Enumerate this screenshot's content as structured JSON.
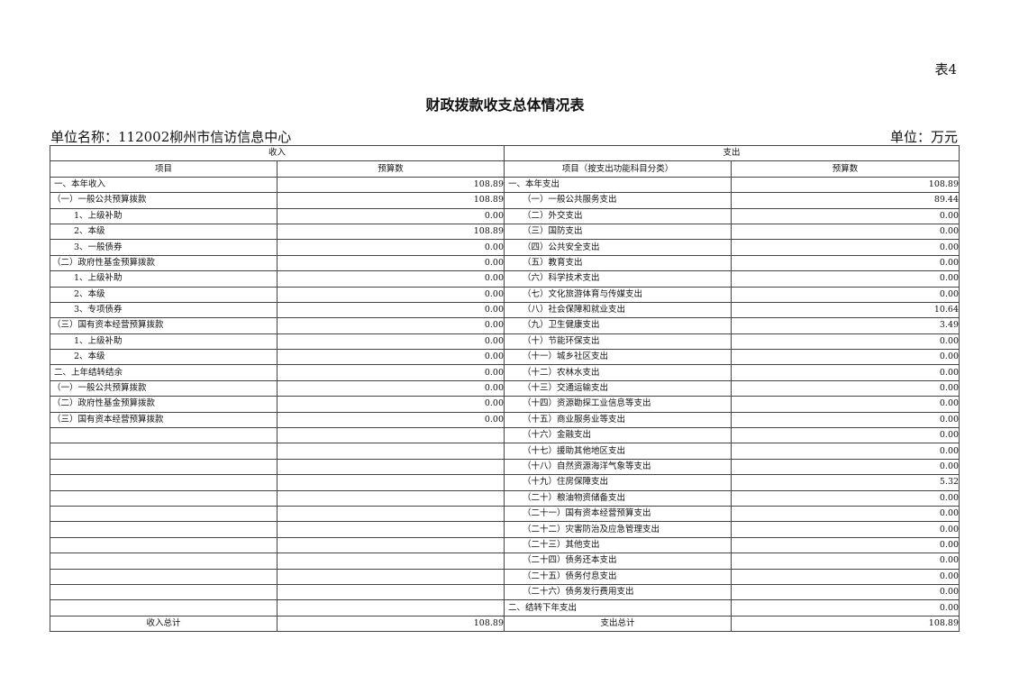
{
  "table_no": "表4",
  "title": "财政拨款收支总体情况表",
  "unit_name": "单位名称：112002柳州市信访信息中心",
  "unit": "单位：万元",
  "headers": {
    "income": "收入",
    "expense": "支出",
    "income_item": "项目",
    "income_budget": "预算数",
    "expense_item": "项目（按支出功能科目分类）",
    "expense_budget": "预算数"
  },
  "income_rows": [
    {
      "item": "一、本年收入",
      "value": "108.89",
      "level": 0
    },
    {
      "item": "（一）一般公共预算拨款",
      "value": "108.89",
      "level": 1
    },
    {
      "item": "1、上级补助",
      "value": "0.00",
      "level": 2
    },
    {
      "item": "2、本级",
      "value": "108.89",
      "level": 2
    },
    {
      "item": "3、一般债券",
      "value": "0.00",
      "level": 2
    },
    {
      "item": "（二）政府性基金预算拨款",
      "value": "0.00",
      "level": 1
    },
    {
      "item": "1、上级补助",
      "value": "0.00",
      "level": 2
    },
    {
      "item": "2、本级",
      "value": "0.00",
      "level": 2
    },
    {
      "item": "3、专项债券",
      "value": "0.00",
      "level": 2
    },
    {
      "item": "（三）国有资本经营预算拨款",
      "value": "0.00",
      "level": 1
    },
    {
      "item": "1、上级补助",
      "value": "0.00",
      "level": 2
    },
    {
      "item": "2、本级",
      "value": "0.00",
      "level": 2
    },
    {
      "item": "二、上年结转结余",
      "value": "0.00",
      "level": 0
    },
    {
      "item": "（一）一般公共预算拨款",
      "value": "0.00",
      "level": 1
    },
    {
      "item": "（二）政府性基金预算拨款",
      "value": "0.00",
      "level": 1
    },
    {
      "item": "（三）国有资本经营预算拨款",
      "value": "0.00",
      "level": 1
    }
  ],
  "expense_rows": [
    {
      "item": "一、本年支出",
      "value": "108.89",
      "level": 0
    },
    {
      "item": "（一）一般公共服务支出",
      "value": "89.44",
      "level": 1
    },
    {
      "item": "（二）外交支出",
      "value": "0.00",
      "level": 1
    },
    {
      "item": "（三）国防支出",
      "value": "0.00",
      "level": 1
    },
    {
      "item": "（四）公共安全支出",
      "value": "0.00",
      "level": 1
    },
    {
      "item": "（五）教育支出",
      "value": "0.00",
      "level": 1
    },
    {
      "item": "（六）科学技术支出",
      "value": "0.00",
      "level": 1
    },
    {
      "item": "（七）文化旅游体育与传媒支出",
      "value": "0.00",
      "level": 1
    },
    {
      "item": "（八）社会保障和就业支出",
      "value": "10.64",
      "level": 1
    },
    {
      "item": "（九）卫生健康支出",
      "value": "3.49",
      "level": 1
    },
    {
      "item": "（十）节能环保支出",
      "value": "0.00",
      "level": 1
    },
    {
      "item": "（十一）城乡社区支出",
      "value": "0.00",
      "level": 1
    },
    {
      "item": "（十二）农林水支出",
      "value": "0.00",
      "level": 1
    },
    {
      "item": "（十三）交通运输支出",
      "value": "0.00",
      "level": 1
    },
    {
      "item": "（十四）资源勘探工业信息等支出",
      "value": "0.00",
      "level": 1
    },
    {
      "item": "（十五）商业服务业等支出",
      "value": "0.00",
      "level": 1
    },
    {
      "item": "（十六）金融支出",
      "value": "0.00",
      "level": 1
    },
    {
      "item": "（十七）援助其他地区支出",
      "value": "0.00",
      "level": 1
    },
    {
      "item": "（十八）自然资源海洋气象等支出",
      "value": "0.00",
      "level": 1
    },
    {
      "item": "（十九）住房保障支出",
      "value": "5.32",
      "level": 1
    },
    {
      "item": "（二十）粮油物资储备支出",
      "value": "0.00",
      "level": 1
    },
    {
      "item": "（二十一）国有资本经营预算支出",
      "value": "0.00",
      "level": 1
    },
    {
      "item": "（二十二）灾害防治及应急管理支出",
      "value": "0.00",
      "level": 1
    },
    {
      "item": "（二十三）其他支出",
      "value": "0.00",
      "level": 1
    },
    {
      "item": "（二十四）债务还本支出",
      "value": "0.00",
      "level": 1
    },
    {
      "item": "（二十五）债务付息支出",
      "value": "0.00",
      "level": 1
    },
    {
      "item": "（二十六）债务发行费用支出",
      "value": "0.00",
      "level": 1
    },
    {
      "item": "二、结转下年支出",
      "value": "0.00",
      "level": 0
    }
  ],
  "totals": {
    "income_label": "收入总计",
    "income_value": "108.89",
    "expense_label": "支出总计",
    "expense_value": "108.89"
  }
}
